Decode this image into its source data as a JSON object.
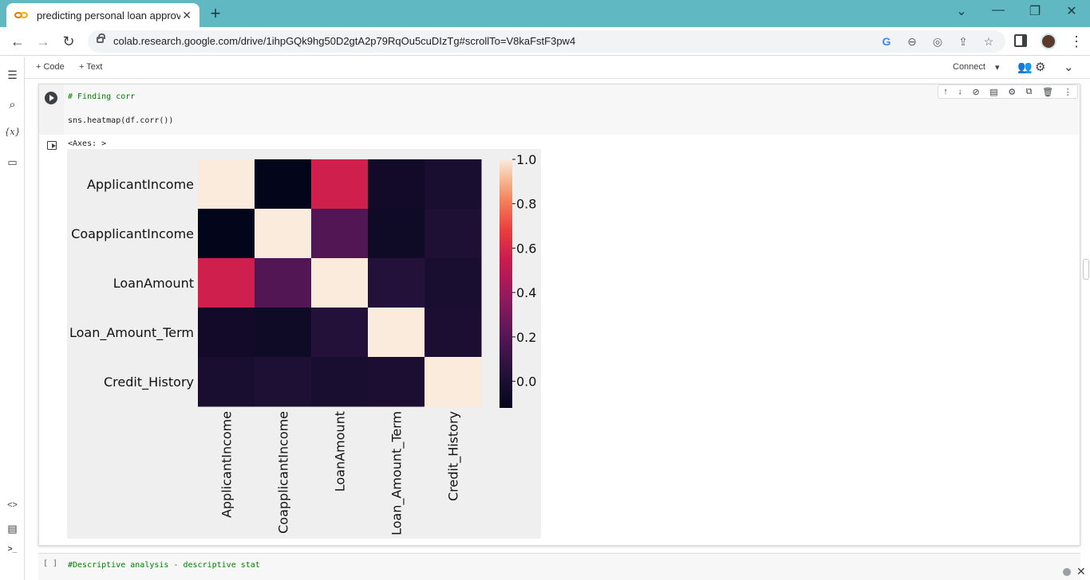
{
  "browser": {
    "tab_title": "predicting personal loan approva",
    "tab_close": "✕",
    "new_tab": "+",
    "url": "colab.research.google.com/drive/1ihpGQk9hg50D2gtA2p79RqOu5cuDIzTg#scrollTo=V8kaFstF3pw4"
  },
  "notebook_bar": {
    "add_code": "+ Code",
    "add_text": "+ Text",
    "connect": "Connect",
    "connect_caret": "▾"
  },
  "left_rail": {
    "toc": "☰",
    "search": "⌕",
    "variables": "{x}",
    "files": "▭",
    "snippets": "<>",
    "palette": "▤",
    "terminal": ">_"
  },
  "cell": {
    "code_lines": [
      "# Finding corr",
      "sns.heatmap(df.corr())"
    ],
    "output_text": "<Axes: >",
    "tools": [
      "↑",
      "↓",
      "⊘",
      "▤",
      "⚙",
      "⧉",
      "🗑",
      "⋮"
    ]
  },
  "next_cell": {
    "bracket": "[ ]",
    "text": "#Descriptive analysis - descriptive stat"
  },
  "chart_data": {
    "type": "heatmap",
    "row_labels": [
      "ApplicantIncome",
      "CoapplicantIncome",
      "LoanAmount",
      "Loan_Amount_Term",
      "Credit_History"
    ],
    "col_labels": [
      "ApplicantIncome",
      "CoapplicantIncome",
      "LoanAmount",
      "Loan_Amount_Term",
      "Credit_History"
    ],
    "values": [
      [
        1.0,
        -0.12,
        0.57,
        -0.05,
        -0.01
      ],
      [
        -0.12,
        1.0,
        0.19,
        -0.06,
        0.01
      ],
      [
        0.57,
        0.19,
        1.0,
        0.04,
        -0.01
      ],
      [
        -0.05,
        -0.06,
        0.04,
        1.0,
        0.0
      ],
      [
        -0.01,
        0.01,
        -0.01,
        0.0,
        1.0
      ]
    ],
    "colorbar_ticks": [
      "1.0",
      "0.8",
      "0.6",
      "0.4",
      "0.2",
      "0.0"
    ],
    "colorbar_tick_values": [
      1.0,
      0.8,
      0.6,
      0.4,
      0.2,
      0.0
    ],
    "vmin": -0.12,
    "vmax": 1.0,
    "colormap": "rocket"
  }
}
